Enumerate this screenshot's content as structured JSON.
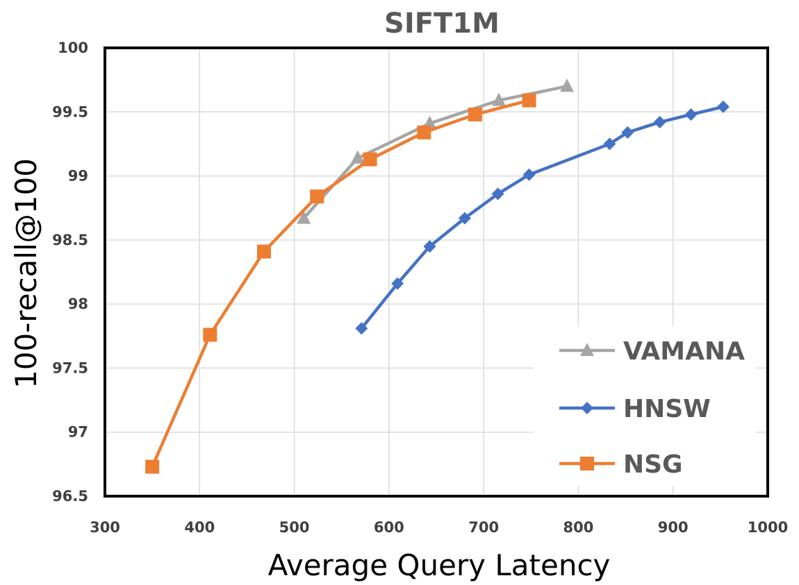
{
  "chart_data": {
    "type": "line",
    "title": "SIFT1M",
    "xlabel": "Average Query Latency",
    "ylabel": "100-recall@100",
    "xlim": [
      300,
      1000
    ],
    "ylim": [
      96.5,
      100
    ],
    "xticks": [
      300,
      400,
      500,
      600,
      700,
      800,
      900,
      1000
    ],
    "yticks": [
      96.5,
      97,
      97.5,
      98,
      98.5,
      99,
      99.5,
      100
    ],
    "ytick_labels": [
      "96.5",
      "97",
      "97.5",
      "98",
      "98.5",
      "99",
      "99.5",
      "100"
    ],
    "grid": true,
    "legend_position": "bottom-right",
    "series": [
      {
        "name": "VAMANA",
        "color": "#a5a5a5",
        "marker": "triangle",
        "x": [
          510,
          567,
          643,
          716,
          788
        ],
        "y": [
          98.67,
          99.14,
          99.41,
          99.59,
          99.7
        ]
      },
      {
        "name": "HNSW",
        "color": "#4472c4",
        "marker": "diamond",
        "x": [
          571,
          609,
          643,
          680,
          715,
          748,
          833,
          852,
          886,
          919,
          953
        ],
        "y": [
          97.81,
          98.16,
          98.45,
          98.67,
          98.86,
          99.01,
          99.25,
          99.34,
          99.42,
          99.48,
          99.54
        ]
      },
      {
        "name": "NSG",
        "color": "#ed7d31",
        "marker": "square",
        "x": [
          350,
          411,
          468,
          524,
          580,
          637,
          691,
          748
        ],
        "y": [
          96.73,
          97.76,
          98.41,
          98.84,
          99.13,
          99.34,
          99.48,
          99.59
        ]
      }
    ]
  }
}
